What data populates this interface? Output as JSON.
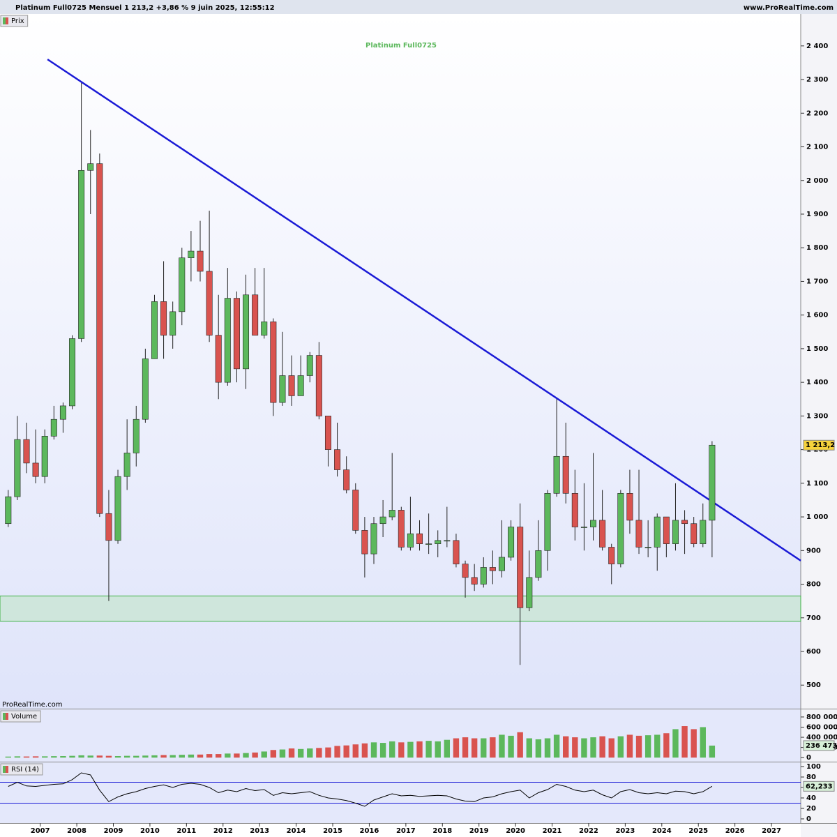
{
  "header": {
    "title": "Platinum Full0725 Mensuel 1 213,2 +3,86 % 9 juin 2025, 12:55:12",
    "site": "www.ProRealTime.com",
    "watermark": "ProRealTime.com"
  },
  "chart_data": [
    {
      "type": "candlestick",
      "title": "Platinum Full0725",
      "pane_label": "Prix",
      "up_color": "#5cb85c",
      "down_color": "#d9534f",
      "title_color": "#5cb85c",
      "x": [
        2006.125,
        2006.375,
        2006.625,
        2006.875,
        2007.125,
        2007.375,
        2007.625,
        2007.875,
        2008.125,
        2008.375,
        2008.625,
        2008.875,
        2009.125,
        2009.375,
        2009.625,
        2009.875,
        2010.125,
        2010.375,
        2010.625,
        2010.875,
        2011.125,
        2011.375,
        2011.625,
        2011.875,
        2012.125,
        2012.375,
        2012.625,
        2012.875,
        2013.125,
        2013.375,
        2013.625,
        2013.875,
        2014.125,
        2014.375,
        2014.625,
        2014.875,
        2015.125,
        2015.375,
        2015.625,
        2015.875,
        2016.125,
        2016.375,
        2016.625,
        2016.875,
        2017.125,
        2017.375,
        2017.625,
        2017.875,
        2018.125,
        2018.375,
        2018.625,
        2018.875,
        2019.125,
        2019.375,
        2019.625,
        2019.875,
        2020.125,
        2020.375,
        2020.625,
        2020.875,
        2021.125,
        2021.375,
        2021.625,
        2021.875,
        2022.125,
        2022.375,
        2022.625,
        2022.875,
        2023.125,
        2023.375,
        2023.625,
        2023.875,
        2024.125,
        2024.375,
        2024.625,
        2024.875,
        2025.125,
        2025.375
      ],
      "open": [
        980,
        1060,
        1230,
        1160,
        1120,
        1240,
        1290,
        1330,
        1530,
        2030,
        2050,
        1010,
        930,
        1120,
        1190,
        1290,
        1470,
        1640,
        1540,
        1610,
        1770,
        1790,
        1730,
        1540,
        1400,
        1650,
        1440,
        1660,
        1540,
        1580,
        1340,
        1420,
        1360,
        1420,
        1480,
        1300,
        1200,
        1140,
        1080,
        960,
        890,
        980,
        1000,
        1020,
        910,
        950,
        920,
        920,
        930,
        930,
        860,
        820,
        800,
        850,
        840,
        880,
        970,
        730,
        820,
        900,
        1070,
        1180,
        1070,
        970,
        970,
        990,
        910,
        860,
        1070,
        990,
        910,
        910,
        1000,
        920,
        990,
        980,
        920,
        990
      ],
      "high": [
        1080,
        1300,
        1280,
        1260,
        1260,
        1330,
        1340,
        1540,
        2290,
        2150,
        2080,
        1080,
        1140,
        1290,
        1330,
        1500,
        1660,
        1760,
        1640,
        1800,
        1850,
        1880,
        1910,
        1660,
        1740,
        1670,
        1720,
        1740,
        1740,
        1590,
        1550,
        1480,
        1480,
        1490,
        1520,
        1300,
        1280,
        1180,
        1100,
        1000,
        1000,
        1050,
        1190,
        1030,
        1060,
        990,
        1010,
        960,
        1030,
        950,
        870,
        860,
        880,
        900,
        990,
        990,
        1040,
        900,
        990,
        1080,
        1350,
        1280,
        1140,
        1100,
        1190,
        1080,
        920,
        1080,
        1140,
        1140,
        990,
        1010,
        1000,
        1100,
        1020,
        1000,
        1040,
        1225
      ],
      "low": [
        970,
        1050,
        1130,
        1100,
        1100,
        1230,
        1250,
        1320,
        1520,
        1900,
        1000,
        750,
        920,
        1080,
        1150,
        1280,
        1470,
        1470,
        1500,
        1570,
        1700,
        1700,
        1520,
        1350,
        1390,
        1400,
        1380,
        1540,
        1530,
        1300,
        1330,
        1330,
        1360,
        1400,
        1290,
        1150,
        1120,
        1070,
        950,
        820,
        860,
        940,
        990,
        900,
        900,
        900,
        890,
        880,
        910,
        850,
        760,
        780,
        790,
        800,
        820,
        870,
        560,
        720,
        810,
        840,
        1060,
        1040,
        930,
        900,
        930,
        900,
        800,
        850,
        950,
        890,
        880,
        840,
        880,
        900,
        890,
        910,
        910,
        880
      ],
      "close": [
        1060,
        1230,
        1160,
        1120,
        1240,
        1290,
        1330,
        1530,
        2030,
        2050,
        1010,
        930,
        1120,
        1190,
        1290,
        1470,
        1640,
        1540,
        1610,
        1770,
        1790,
        1730,
        1540,
        1400,
        1650,
        1440,
        1660,
        1540,
        1580,
        1340,
        1420,
        1360,
        1420,
        1480,
        1300,
        1200,
        1140,
        1080,
        960,
        890,
        980,
        1000,
        1020,
        910,
        950,
        920,
        920,
        930,
        930,
        860,
        820,
        800,
        850,
        840,
        880,
        970,
        730,
        820,
        900,
        1070,
        1180,
        1070,
        970,
        970,
        990,
        910,
        860,
        1070,
        990,
        910,
        910,
        1000,
        920,
        990,
        980,
        920,
        990,
        1213.2
      ],
      "last": {
        "value": 1213.2,
        "label": "1 213,2"
      },
      "trendline": {
        "x": [
          2007.2,
          2027.8
        ],
        "y": [
          2360,
          870
        ],
        "color": "#1a1ad6"
      },
      "zone": [
        690,
        765
      ],
      "zone_color": "#cfe6dc",
      "xlim": [
        2005.9,
        2027.8
      ],
      "xticks": [
        2007,
        2008,
        2009,
        2010,
        2011,
        2012,
        2013,
        2014,
        2015,
        2016,
        2017,
        2018,
        2019,
        2020,
        2021,
        2022,
        2023,
        2024,
        2025,
        2026,
        2027
      ],
      "ylim": [
        430,
        2495
      ],
      "yticks": [
        500,
        600,
        700,
        800,
        900,
        {
          "value": 1000,
          "label": "1 000"
        },
        {
          "value": 1100,
          "label": "1 100"
        },
        {
          "value": 1200,
          "label": "1 200"
        },
        {
          "value": 1300,
          "label": "1 300"
        },
        {
          "value": 1400,
          "label": "1 400"
        },
        {
          "value": 1500,
          "label": "1 500"
        },
        {
          "value": 1600,
          "label": "1 600"
        },
        {
          "value": 1700,
          "label": "1 700"
        },
        {
          "value": 1800,
          "label": "1 800"
        },
        {
          "value": 1900,
          "label": "1 900"
        },
        {
          "value": 2000,
          "label": "2 000"
        },
        {
          "value": 2100,
          "label": "2 100"
        },
        {
          "value": 2200,
          "label": "2 200"
        },
        {
          "value": 2300,
          "label": "2 300"
        },
        {
          "value": 2400,
          "label": "2 400"
        }
      ]
    },
    {
      "type": "bar",
      "pane_label": "Volume",
      "values": [
        20000,
        25000,
        22000,
        25000,
        25000,
        28000,
        30000,
        35000,
        45000,
        40000,
        40000,
        35000,
        30000,
        35000,
        35000,
        40000,
        45000,
        50000,
        50000,
        55000,
        60000,
        60000,
        70000,
        70000,
        80000,
        80000,
        90000,
        100000,
        120000,
        150000,
        160000,
        180000,
        170000,
        180000,
        190000,
        200000,
        230000,
        240000,
        260000,
        280000,
        300000,
        290000,
        320000,
        300000,
        310000,
        320000,
        330000,
        320000,
        350000,
        380000,
        400000,
        380000,
        380000,
        400000,
        450000,
        430000,
        500000,
        380000,
        360000,
        380000,
        450000,
        420000,
        400000,
        380000,
        400000,
        420000,
        380000,
        420000,
        450000,
        430000,
        440000,
        450000,
        480000,
        560000,
        620000,
        560000,
        600000,
        236473
      ],
      "last": {
        "value": 236473,
        "label": "236 473"
      },
      "ylim": [
        -80000,
        950000
      ],
      "yticks": [
        0,
        {
          "value": 200000,
          "label": "200 000"
        },
        {
          "value": 400000,
          "label": "400 000"
        },
        {
          "value": 600000,
          "label": "600 000"
        },
        {
          "value": 800000,
          "label": "800 000"
        }
      ]
    },
    {
      "type": "line",
      "pane_label": "RSI (14)",
      "color": "#000000",
      "values": [
        62,
        70,
        63,
        62,
        64,
        66,
        67,
        75,
        88,
        84,
        55,
        33,
        42,
        48,
        52,
        58,
        62,
        65,
        60,
        66,
        68,
        66,
        60,
        50,
        55,
        52,
        58,
        54,
        56,
        45,
        50,
        48,
        50,
        52,
        45,
        40,
        38,
        35,
        30,
        24,
        36,
        42,
        48,
        44,
        45,
        43,
        44,
        45,
        44,
        38,
        34,
        33,
        40,
        42,
        48,
        52,
        55,
        40,
        50,
        56,
        66,
        62,
        55,
        52,
        55,
        46,
        40,
        52,
        56,
        50,
        48,
        50,
        48,
        53,
        52,
        48,
        52,
        62.233
      ],
      "last": {
        "value": 62.233,
        "label": "62,233"
      },
      "levels": [
        70,
        30
      ],
      "level_color": "#1a1ad6",
      "ylim": [
        -8,
        108
      ],
      "yticks": [
        0,
        20,
        40,
        60,
        80,
        100
      ]
    }
  ]
}
